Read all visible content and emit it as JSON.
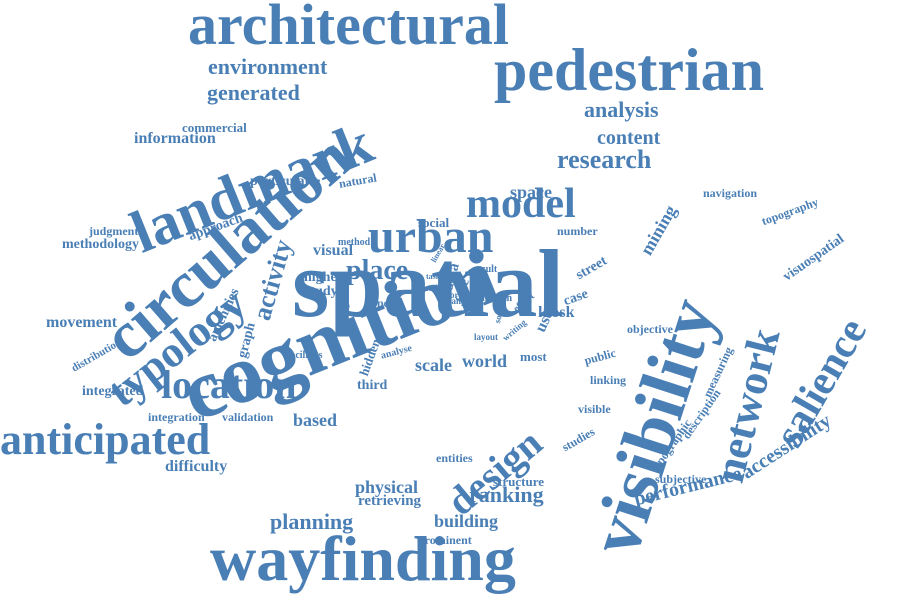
{
  "color": "#4a7fb5",
  "words": [
    {
      "text": "spatial"
    },
    {
      "text": "cognition"
    },
    {
      "text": "circulation"
    },
    {
      "text": "landmark"
    },
    {
      "text": "pedestrian"
    },
    {
      "text": "architectural"
    },
    {
      "text": "wayfinding"
    },
    {
      "text": "visibility"
    },
    {
      "text": "location"
    },
    {
      "text": "anticipated"
    },
    {
      "text": "design"
    },
    {
      "text": "network"
    },
    {
      "text": "urban"
    },
    {
      "text": "model"
    },
    {
      "text": "typology"
    },
    {
      "text": "salience"
    },
    {
      "text": "environment"
    },
    {
      "text": "generated"
    },
    {
      "text": "research"
    },
    {
      "text": "analysis"
    },
    {
      "text": "content"
    },
    {
      "text": "place"
    },
    {
      "text": "activity"
    },
    {
      "text": "accessibility"
    },
    {
      "text": "performance"
    },
    {
      "text": "ranking"
    },
    {
      "text": "planning"
    },
    {
      "text": "building"
    },
    {
      "text": "physical"
    },
    {
      "text": "movement"
    },
    {
      "text": "world"
    },
    {
      "text": "based"
    },
    {
      "text": "retrieving"
    },
    {
      "text": "space"
    },
    {
      "text": "scale"
    },
    {
      "text": "information"
    },
    {
      "text": "commercial"
    },
    {
      "text": "particular"
    },
    {
      "text": "methodology"
    },
    {
      "text": "judgment"
    },
    {
      "text": "approach"
    },
    {
      "text": "visual"
    },
    {
      "text": "study"
    },
    {
      "text": "mining"
    },
    {
      "text": "navigation"
    },
    {
      "text": "topography"
    },
    {
      "text": "visuospatial"
    },
    {
      "text": "kiosk"
    },
    {
      "text": "case"
    },
    {
      "text": "street"
    },
    {
      "text": "number"
    },
    {
      "text": "social"
    },
    {
      "text": "natural"
    },
    {
      "text": "integrated"
    },
    {
      "text": "integration"
    },
    {
      "text": "validation"
    },
    {
      "text": "difficulty"
    },
    {
      "text": "entities"
    },
    {
      "text": "structure"
    },
    {
      "text": "prominent"
    },
    {
      "text": "third"
    },
    {
      "text": "most"
    },
    {
      "text": "public"
    },
    {
      "text": "linking"
    },
    {
      "text": "visible"
    },
    {
      "text": "studies"
    },
    {
      "text": "subjective"
    },
    {
      "text": "topographic"
    },
    {
      "text": "description"
    },
    {
      "text": "measuring"
    },
    {
      "text": "objective"
    },
    {
      "text": "graph"
    },
    {
      "text": "amenities"
    },
    {
      "text": "facilities"
    },
    {
      "text": "hidden"
    },
    {
      "text": "distribution"
    },
    {
      "text": "higher"
    },
    {
      "text": "type"
    },
    {
      "text": "data"
    },
    {
      "text": "free"
    },
    {
      "text": "user"
    },
    {
      "text": "method"
    },
    {
      "text": "result"
    },
    {
      "text": "analyse"
    },
    {
      "text": "paper"
    },
    {
      "text": "human"
    },
    {
      "text": "effort"
    },
    {
      "text": "source"
    },
    {
      "text": "writing"
    },
    {
      "text": "layout"
    },
    {
      "text": "mode"
    },
    {
      "text": "form"
    },
    {
      "text": "many"
    },
    {
      "text": "linear"
    },
    {
      "text": "tasks"
    }
  ]
}
